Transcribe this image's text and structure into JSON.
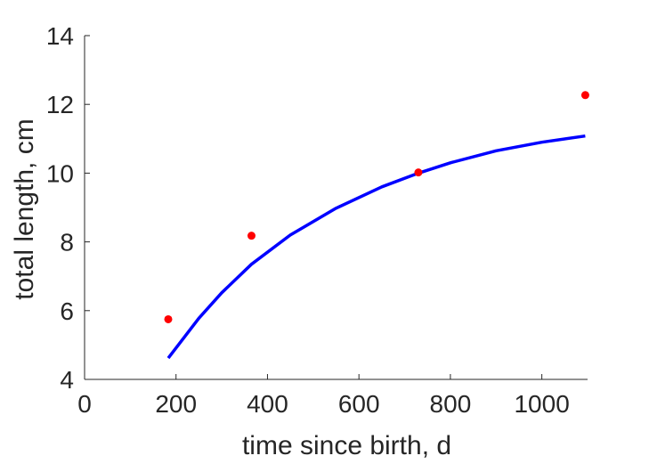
{
  "chart_data": {
    "type": "scatter",
    "xlabel": "time since birth, d",
    "ylabel": "total length, cm",
    "xlim": [
      0,
      1100
    ],
    "ylim": [
      4,
      14
    ],
    "xticks": [
      0,
      200,
      400,
      600,
      800,
      1000
    ],
    "yticks": [
      4,
      6,
      8,
      10,
      12,
      14
    ],
    "grid": false,
    "series": [
      {
        "kind": "points",
        "color": "#ff0000",
        "x": [
          183,
          365,
          730,
          1095
        ],
        "y": [
          5.75,
          8.18,
          10.02,
          12.27
        ]
      },
      {
        "kind": "line",
        "color": "#0000ff",
        "x": [
          183,
          250,
          300,
          365,
          450,
          550,
          650,
          730,
          800,
          900,
          1000,
          1095
        ],
        "y": [
          4.62,
          5.78,
          6.52,
          7.35,
          8.2,
          8.98,
          9.6,
          10.0,
          10.3,
          10.65,
          10.9,
          11.08
        ]
      }
    ]
  }
}
